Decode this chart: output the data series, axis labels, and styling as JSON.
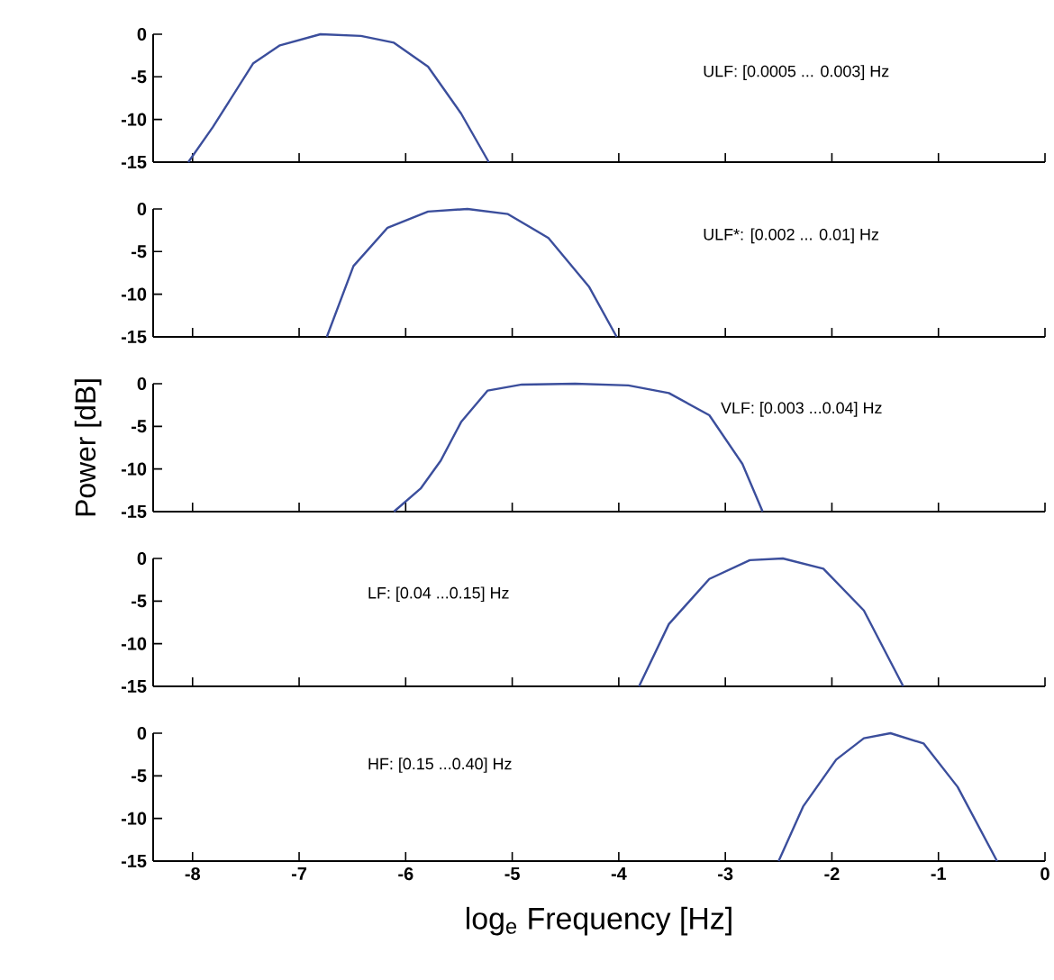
{
  "chart_data": [
    {
      "type": "line",
      "color": "#3b4e9c",
      "marker": "none",
      "x": [
        -8.04,
        -7.81,
        -7.43,
        -7.18,
        -6.8,
        -6.42,
        -6.11,
        -5.79,
        -5.48,
        -5.22
      ],
      "values": [
        -15,
        -10.9,
        -3.4,
        -1.3,
        0,
        -0.2,
        -1.0,
        -3.8,
        -9.3,
        -15
      ],
      "xlim": [
        -8.37,
        0
      ],
      "ylim": [
        -15,
        0
      ],
      "xticks": [
        -8,
        -7,
        -6,
        -5,
        -4,
        -3,
        -2,
        -1,
        0
      ],
      "yticks": [
        -15,
        -10,
        -5,
        0
      ],
      "tick_labels": "y",
      "annotations": [
        "ULF: [0.0005 ... 0.003] Hz"
      ]
    },
    {
      "type": "line",
      "color": "#3b4e9c",
      "marker": "none",
      "x": [
        -6.74,
        -6.49,
        -6.17,
        -5.79,
        -5.42,
        -5.04,
        -4.66,
        -4.28,
        -4.02
      ],
      "values": [
        -15,
        -6.7,
        -2.2,
        -0.3,
        0,
        -0.6,
        -3.4,
        -9.1,
        -15
      ],
      "xlim": [
        -8.37,
        0
      ],
      "ylim": [
        -15,
        0
      ],
      "xticks": [
        -8,
        -7,
        -6,
        -5,
        -4,
        -3,
        -2,
        -1,
        0
      ],
      "yticks": [
        -15,
        -10,
        -5,
        0
      ],
      "tick_labels": "y",
      "annotations": [
        "ULF*: [0.002 ... 0.01] Hz"
      ]
    },
    {
      "type": "line",
      "color": "#3b4e9c",
      "marker": "none",
      "x": [
        -6.11,
        -5.86,
        -5.67,
        -5.48,
        -5.23,
        -4.91,
        -4.41,
        -3.91,
        -3.53,
        -3.15,
        -2.84,
        -2.65
      ],
      "values": [
        -15,
        -12.3,
        -9.0,
        -4.5,
        -0.8,
        -0.1,
        0,
        -0.2,
        -1.1,
        -3.7,
        -9.4,
        -15
      ],
      "xlim": [
        -8.37,
        0
      ],
      "ylim": [
        -15,
        0
      ],
      "xticks": [
        -8,
        -7,
        -6,
        -5,
        -4,
        -3,
        -2,
        -1,
        0
      ],
      "yticks": [
        -15,
        -10,
        -5,
        0
      ],
      "tick_labels": "y",
      "ylabel": "Power [dB]",
      "annotations": [
        "VLF: [0.003 ...0.04] Hz"
      ]
    },
    {
      "type": "line",
      "color": "#3b4e9c",
      "marker": "none",
      "x": [
        -3.81,
        -3.53,
        -3.15,
        -2.77,
        -2.46,
        -2.08,
        -1.7,
        -1.33
      ],
      "values": [
        -15,
        -7.7,
        -2.4,
        -0.2,
        0,
        -1.2,
        -6.1,
        -15
      ],
      "xlim": [
        -8.37,
        0
      ],
      "ylim": [
        -15,
        0
      ],
      "xticks": [
        -8,
        -7,
        -6,
        -5,
        -4,
        -3,
        -2,
        -1,
        0
      ],
      "yticks": [
        -15,
        -10,
        -5,
        0
      ],
      "tick_labels": "y",
      "annotations": [
        "LF: [0.04 ...0.15] Hz"
      ]
    },
    {
      "type": "line",
      "color": "#3b4e9c",
      "marker": "none",
      "x": [
        -2.5,
        -2.27,
        -1.96,
        -1.7,
        -1.45,
        -1.14,
        -0.82,
        -0.45
      ],
      "values": [
        -15,
        -8.6,
        -3.1,
        -0.6,
        0,
        -1.2,
        -6.3,
        -15
      ],
      "xlim": [
        -8.37,
        0
      ],
      "ylim": [
        -15,
        0
      ],
      "xticks": [
        -8,
        -7,
        -6,
        -5,
        -4,
        -3,
        -2,
        -1,
        0
      ],
      "yticks": [
        -15,
        -10,
        -5,
        0
      ],
      "xlabel": "log$_{e}$ Frequency [Hz]",
      "annotations": [
        "HF: [0.15 ...0.40] Hz"
      ]
    }
  ]
}
